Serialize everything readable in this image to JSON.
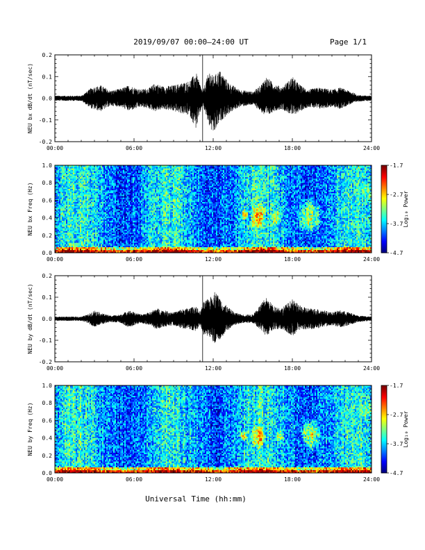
{
  "header": {
    "title": "2019/09/07  00:00–24:00 UT",
    "page": "Page 1/1"
  },
  "footer": {
    "xlabel": "Universal Time (hh:mm)"
  },
  "chart_data": [
    {
      "type": "line",
      "panel": "waveform-bx",
      "ylabel": "NEU bx dB/dt (nT/sec)",
      "xlim": [
        "00:00",
        "24:00"
      ],
      "ylim": [
        -0.2,
        0.2
      ],
      "x_ticks": [
        "00:00",
        "06:00",
        "12:00",
        "18:00",
        "24:00"
      ],
      "y_ticks": [
        "-0.2",
        "-0.1",
        "0.0",
        "0.1",
        "0.2"
      ],
      "marker_time_hours": 11.2,
      "envelope": {
        "time_hours": [
          0,
          2,
          2.8,
          3.5,
          4.2,
          5,
          5.6,
          6.5,
          7.2,
          7.6,
          8.2,
          9,
          9.6,
          10.2,
          10.7,
          11.2,
          11.7,
          12.0,
          12.5,
          13.2,
          14,
          15,
          15.6,
          16.0,
          16.6,
          17.2,
          18.0,
          18.6,
          19.2,
          20.0,
          21,
          21.6,
          22.3,
          23,
          24
        ],
        "upper": [
          0.012,
          0.012,
          0.05,
          0.06,
          0.035,
          0.045,
          0.06,
          0.04,
          0.05,
          0.07,
          0.055,
          0.06,
          0.07,
          0.08,
          0.12,
          0.03,
          0.13,
          0.1,
          0.13,
          0.07,
          0.04,
          0.03,
          0.06,
          0.1,
          0.07,
          0.05,
          0.1,
          0.06,
          0.04,
          0.05,
          0.04,
          0.05,
          0.035,
          0.015,
          0.012
        ],
        "lower": [
          -0.012,
          -0.012,
          -0.05,
          -0.06,
          -0.035,
          -0.04,
          -0.06,
          -0.04,
          -0.05,
          -0.06,
          -0.05,
          -0.06,
          -0.07,
          -0.08,
          -0.14,
          -0.03,
          -0.13,
          -0.17,
          -0.11,
          -0.07,
          -0.04,
          -0.03,
          -0.06,
          -0.09,
          -0.06,
          -0.05,
          -0.08,
          -0.06,
          -0.04,
          -0.05,
          -0.04,
          -0.05,
          -0.03,
          -0.015,
          -0.012
        ]
      }
    },
    {
      "type": "heatmap",
      "panel": "spectrogram-bx",
      "ylabel": "NEU bx Freq (Hz)",
      "xlim": [
        "00:00",
        "24:00"
      ],
      "ylim": [
        0.0,
        1.0
      ],
      "x_ticks": [
        "00:00",
        "06:00",
        "12:00",
        "18:00",
        "24:00"
      ],
      "y_ticks": [
        "0.0",
        "0.2",
        "0.4",
        "0.6",
        "0.8",
        "1.0"
      ],
      "colorbar": {
        "label": "Log₁₀ Power",
        "ticks": [
          "-1.7",
          "-2.7",
          "-3.7",
          "-4.7"
        ],
        "range": [
          -4.7,
          -1.7
        ]
      },
      "hotspots": [
        {
          "t": 14.4,
          "f": 0.44,
          "r": 0.12,
          "amp": 0.5
        },
        {
          "t": 15.4,
          "f": 0.42,
          "r": 0.28,
          "amp": 0.38
        },
        {
          "t": 16.8,
          "f": 0.41,
          "r": 0.18,
          "amp": 0.3
        },
        {
          "t": 19.3,
          "f": 0.42,
          "r": 0.42,
          "amp": 0.45
        },
        {
          "t": 23.6,
          "f": 0.7,
          "r": 0.22,
          "amp": 0.15
        }
      ]
    },
    {
      "type": "line",
      "panel": "waveform-by",
      "ylabel": "NEU by dB/dt (nT/sec)",
      "xlim": [
        "00:00",
        "24:00"
      ],
      "ylim": [
        -0.2,
        0.2
      ],
      "x_ticks": [
        "00:00",
        "06:00",
        "12:00",
        "18:00",
        "24:00"
      ],
      "y_ticks": [
        "-0.2",
        "-0.1",
        "0.0",
        "0.1",
        "0.2"
      ],
      "marker_time_hours": 11.2,
      "envelope": {
        "time_hours": [
          0,
          2,
          2.5,
          3.0,
          3.6,
          4.2,
          5,
          5.6,
          6.5,
          7.2,
          7.7,
          8.2,
          9,
          9.6,
          10.2,
          10.7,
          11.0,
          11.3,
          11.8,
          12.1,
          12.5,
          13.0,
          13.6,
          14.2,
          15,
          15.5,
          16.0,
          16.6,
          17.2,
          18.0,
          18.6,
          19.2,
          20.0,
          21,
          21.6,
          22.3,
          23,
          24
        ],
        "upper": [
          0.01,
          0.01,
          0.02,
          0.04,
          0.025,
          0.015,
          0.02,
          0.04,
          0.02,
          0.03,
          0.05,
          0.04,
          0.03,
          0.045,
          0.05,
          0.06,
          0.03,
          0.08,
          0.1,
          0.13,
          0.1,
          0.06,
          0.03,
          0.02,
          0.02,
          0.06,
          0.1,
          0.06,
          0.05,
          0.09,
          0.06,
          0.05,
          0.045,
          0.03,
          0.04,
          0.03,
          0.015,
          0.01
        ],
        "lower": [
          -0.01,
          -0.01,
          -0.02,
          -0.04,
          -0.025,
          -0.015,
          -0.02,
          -0.04,
          -0.02,
          -0.03,
          -0.05,
          -0.04,
          -0.03,
          -0.045,
          -0.05,
          -0.06,
          -0.03,
          -0.08,
          -0.09,
          -0.12,
          -0.1,
          -0.06,
          -0.03,
          -0.02,
          -0.02,
          -0.05,
          -0.08,
          -0.05,
          -0.05,
          -0.08,
          -0.05,
          -0.05,
          -0.045,
          -0.03,
          -0.04,
          -0.03,
          -0.015,
          -0.01
        ]
      }
    },
    {
      "type": "heatmap",
      "panel": "spectrogram-by",
      "ylabel": "NEU by Freq (Hz)",
      "xlim": [
        "00:00",
        "24:00"
      ],
      "ylim": [
        0.0,
        1.0
      ],
      "x_ticks": [
        "00:00",
        "06:00",
        "12:00",
        "18:00",
        "24:00"
      ],
      "y_ticks": [
        "0.0",
        "0.2",
        "0.4",
        "0.6",
        "0.8",
        "1.0"
      ],
      "colorbar": {
        "label": "Log₁₀ Power",
        "ticks": [
          "-1.7",
          "-2.7",
          "-3.7",
          "-4.7"
        ],
        "range": [
          -4.7,
          -1.7
        ]
      },
      "hotspots": [
        {
          "t": 14.3,
          "f": 0.43,
          "r": 0.12,
          "amp": 0.4
        },
        {
          "t": 15.4,
          "f": 0.42,
          "r": 0.26,
          "amp": 0.4
        },
        {
          "t": 17.0,
          "f": 0.43,
          "r": 0.16,
          "amp": 0.28
        },
        {
          "t": 19.4,
          "f": 0.44,
          "r": 0.36,
          "amp": 0.42
        },
        {
          "t": 23.6,
          "f": 0.72,
          "r": 0.22,
          "amp": 0.18
        }
      ]
    }
  ]
}
